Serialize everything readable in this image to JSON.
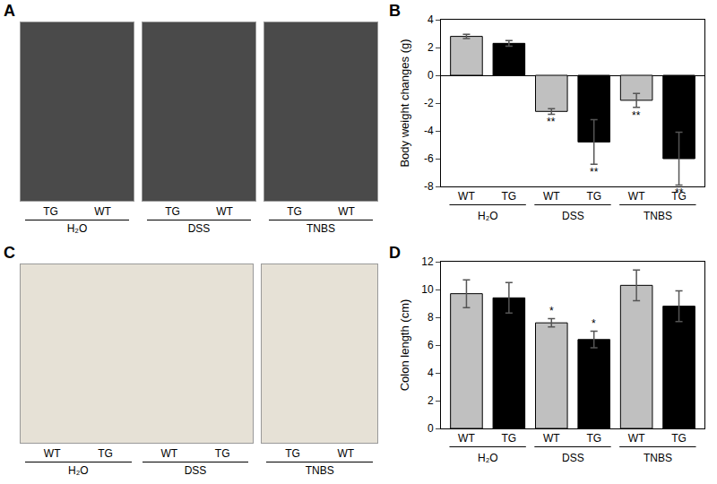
{
  "photo_panels": [
    {
      "label": "A",
      "photos": [
        {
          "groups": [
            {
              "items": [
                "TG",
                "WT"
              ],
              "group": "H₂O"
            }
          ]
        },
        {
          "groups": [
            {
              "items": [
                "TG",
                "WT"
              ],
              "group": "DSS"
            }
          ]
        },
        {
          "groups": [
            {
              "items": [
                "TG",
                "WT"
              ],
              "group": "TNBS"
            }
          ]
        }
      ]
    },
    {
      "label": "C",
      "photos": [
        {
          "groups": [
            {
              "items": [
                "WT",
                "TG"
              ],
              "group": "H₂O"
            },
            {
              "items": [
                "WT",
                "TG"
              ],
              "group": "DSS"
            }
          ]
        },
        {
          "groups": [
            {
              "items": [
                "TG",
                "WT"
              ],
              "group": "TNBS"
            }
          ]
        }
      ]
    }
  ],
  "chart_data": [
    {
      "type": "bar",
      "panel": "B",
      "y_label": "Body weight changes (g)",
      "categories": [
        "WT",
        "TG",
        "WT",
        "TG",
        "WT",
        "TG"
      ],
      "groups": [
        "H₂O",
        "DSS",
        "TNBS"
      ],
      "values": [
        2.8,
        2.3,
        -2.6,
        -4.8,
        -1.8,
        -6.0
      ],
      "errors": [
        0.15,
        0.2,
        0.2,
        1.6,
        0.5,
        1.9
      ],
      "significance": [
        null,
        null,
        "**",
        "**",
        "**",
        "**"
      ],
      "colors": [
        "#c0c0c0",
        "#000000",
        "#c0c0c0",
        "#000000",
        "#c0c0c0",
        "#000000"
      ],
      "ylim": [
        -8,
        4
      ],
      "yticks": [
        -8,
        -6,
        -4,
        -2,
        0,
        2,
        4
      ],
      "grid": false
    },
    {
      "type": "bar",
      "panel": "D",
      "y_label": "Colon length (cm)",
      "categories": [
        "WT",
        "TG",
        "WT",
        "TG",
        "WT",
        "TG"
      ],
      "groups": [
        "H₂O",
        "DSS",
        "TNBS"
      ],
      "values": [
        9.7,
        9.4,
        7.6,
        6.4,
        10.3,
        8.8
      ],
      "errors": [
        1.0,
        1.1,
        0.3,
        0.6,
        1.1,
        1.1
      ],
      "significance": [
        null,
        null,
        "*",
        "*",
        null,
        null
      ],
      "colors": [
        "#c0c0c0",
        "#000000",
        "#c0c0c0",
        "#000000",
        "#c0c0c0",
        "#000000"
      ],
      "ylim": [
        0,
        12
      ],
      "yticks": [
        0,
        2,
        4,
        6,
        8,
        10,
        12
      ],
      "grid": false
    }
  ]
}
